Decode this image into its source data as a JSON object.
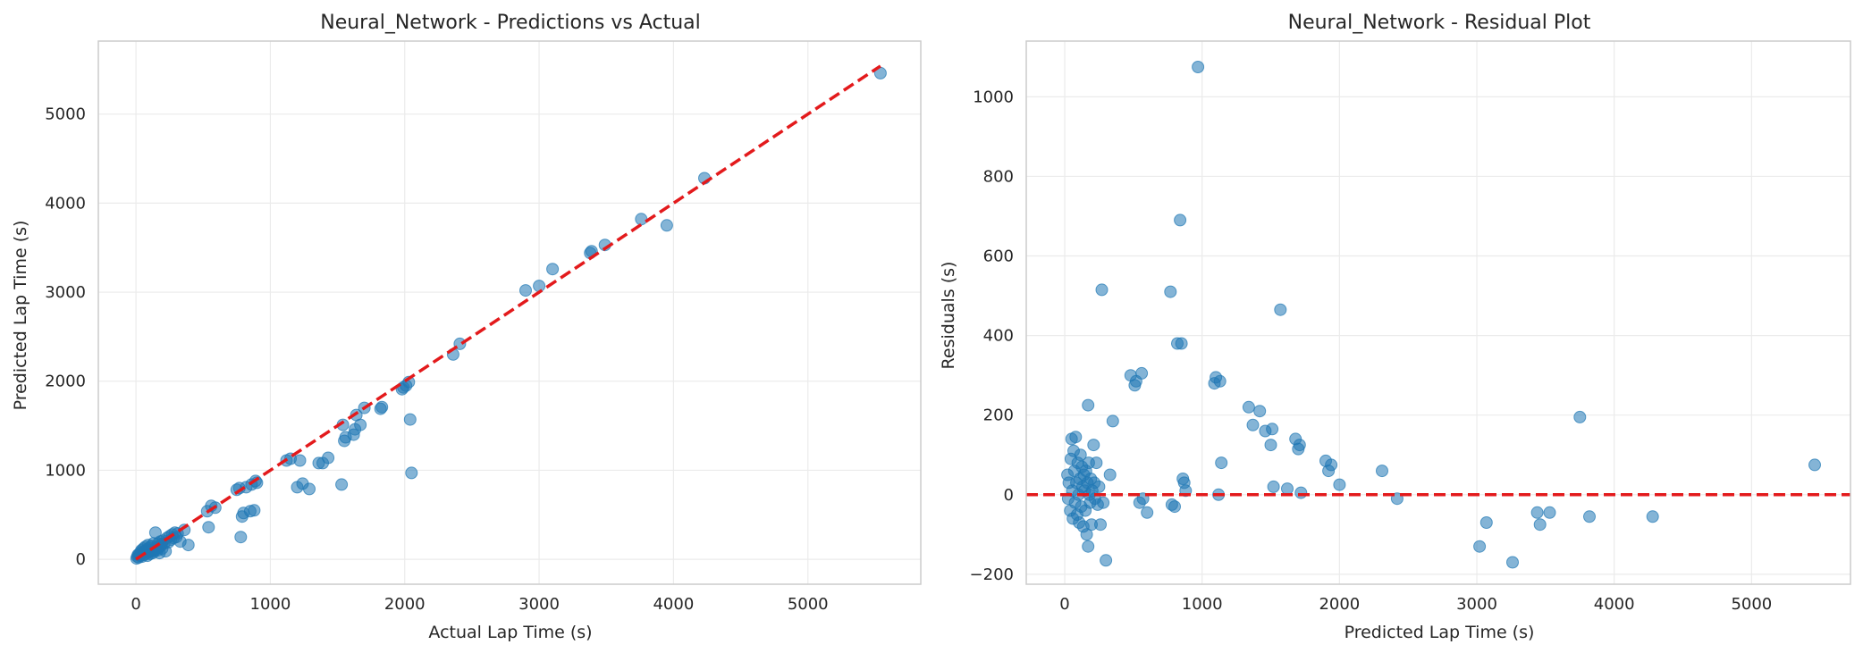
{
  "chart_data": [
    {
      "type": "scatter",
      "title": "Neural_Network - Predictions vs Actual",
      "xlabel": "Actual Lap Time (s)",
      "ylabel": "Predicted Lap Time (s)",
      "xlim": [
        -280,
        5840
      ],
      "ylim": [
        -280,
        5820
      ],
      "xticks": [
        0,
        1000,
        2000,
        3000,
        4000,
        5000
      ],
      "yticks": [
        0,
        1000,
        2000,
        3000,
        4000,
        5000
      ],
      "grid": true,
      "colors": {
        "points": "#1f77b4",
        "reference_line": "#e31a1c",
        "grid": "#ebebeb",
        "frame": "#cccccc"
      },
      "reference_line": {
        "style": "dashed",
        "x": [
          0,
          5540
        ],
        "y": [
          0,
          5540
        ]
      },
      "series": [
        {
          "points": [
            [
              5,
              10
            ],
            [
              10,
              30
            ],
            [
              15,
              50
            ],
            [
              20,
              20
            ],
            [
              25,
              60
            ],
            [
              30,
              40
            ],
            [
              35,
              80
            ],
            [
              40,
              100
            ],
            [
              45,
              30
            ],
            [
              50,
              70
            ],
            [
              55,
              120
            ],
            [
              60,
              50
            ],
            [
              65,
              90
            ],
            [
              70,
              140
            ],
            [
              75,
              60
            ],
            [
              80,
              110
            ],
            [
              85,
              40
            ],
            [
              90,
              160
            ],
            [
              95,
              80
            ],
            [
              100,
              130
            ],
            [
              105,
              60
            ],
            [
              110,
              100
            ],
            [
              115,
              150
            ],
            [
              120,
              90
            ],
            [
              125,
              70
            ],
            [
              130,
              180
            ],
            [
              135,
              110
            ],
            [
              140,
              95
            ],
            [
              145,
              300
            ],
            [
              150,
              120
            ],
            [
              155,
              140
            ],
            [
              160,
              100
            ],
            [
              165,
              180
            ],
            [
              170,
              130
            ],
            [
              175,
              70
            ],
            [
              180,
              200
            ],
            [
              185,
              150
            ],
            [
              190,
              170
            ],
            [
              195,
              120
            ],
            [
              200,
              210
            ],
            [
              210,
              180
            ],
            [
              220,
              90
            ],
            [
              230,
              240
            ],
            [
              240,
              190
            ],
            [
              250,
              260
            ],
            [
              260,
              220
            ],
            [
              270,
              280
            ],
            [
              280,
              240
            ],
            [
              290,
              300
            ],
            [
              300,
              250
            ],
            [
              310,
              290
            ],
            [
              330,
              200
            ],
            [
              360,
              330
            ],
            [
              390,
              160
            ],
            [
              530,
              540
            ],
            [
              540,
              360
            ],
            [
              560,
              600
            ],
            [
              590,
              580
            ],
            [
              750,
              780
            ],
            [
              770,
              800
            ],
            [
              780,
              250
            ],
            [
              790,
              480
            ],
            [
              800,
              520
            ],
            [
              820,
              810
            ],
            [
              850,
              540
            ],
            [
              860,
              840
            ],
            [
              880,
              550
            ],
            [
              890,
              880
            ],
            [
              900,
              860
            ],
            [
              1120,
              1110
            ],
            [
              1150,
              1130
            ],
            [
              1200,
              810
            ],
            [
              1220,
              1110
            ],
            [
              1240,
              850
            ],
            [
              1290,
              790
            ],
            [
              1360,
              1080
            ],
            [
              1390,
              1080
            ],
            [
              1430,
              1140
            ],
            [
              1530,
              840
            ],
            [
              1540,
              1510
            ],
            [
              1550,
              1330
            ],
            [
              1560,
              1370
            ],
            [
              1620,
              1400
            ],
            [
              1630,
              1460
            ],
            [
              1640,
              1620
            ],
            [
              1670,
              1510
            ],
            [
              1700,
              1700
            ],
            [
              1820,
              1690
            ],
            [
              1830,
              1710
            ],
            [
              1980,
              1910
            ],
            [
              1990,
              1930
            ],
            [
              2010,
              1950
            ],
            [
              2030,
              1990
            ],
            [
              2040,
              1570
            ],
            [
              2050,
              970
            ],
            [
              2360,
              2300
            ],
            [
              2410,
              2420
            ],
            [
              2900,
              3020
            ],
            [
              3000,
              3070
            ],
            [
              3100,
              3260
            ],
            [
              3380,
              3440
            ],
            [
              3390,
              3460
            ],
            [
              3490,
              3530
            ],
            [
              3760,
              3820
            ],
            [
              3950,
              3750
            ],
            [
              4230,
              4280
            ],
            [
              5540,
              5460
            ]
          ]
        }
      ]
    },
    {
      "type": "scatter",
      "title": "Neural_Network - Residual Plot",
      "xlabel": "Predicted Lap Time (s)",
      "ylabel": "Residuals (s)",
      "xlim": [
        -280,
        5720
      ],
      "ylim": [
        -225,
        1140
      ],
      "xticks": [
        0,
        1000,
        2000,
        3000,
        4000,
        5000
      ],
      "yticks": [
        -200,
        0,
        200,
        400,
        600,
        800,
        1000
      ],
      "grid": true,
      "colors": {
        "points": "#1f77b4",
        "reference_line": "#e31a1c",
        "grid": "#ebebeb",
        "frame": "#cccccc"
      },
      "reference_line": {
        "style": "dashed",
        "y": 0
      },
      "series": [
        {
          "points": [
            [
              20,
              50
            ],
            [
              25,
              -10
            ],
            [
              30,
              30
            ],
            [
              40,
              -40
            ],
            [
              45,
              90
            ],
            [
              50,
              140
            ],
            [
              55,
              10
            ],
            [
              60,
              -60
            ],
            [
              65,
              110
            ],
            [
              70,
              60
            ],
            [
              75,
              -20
            ],
            [
              80,
              145
            ],
            [
              85,
              30
            ],
            [
              90,
              -50
            ],
            [
              95,
              80
            ],
            [
              100,
              0
            ],
            [
              105,
              -70
            ],
            [
              110,
              40
            ],
            [
              115,
              100
            ],
            [
              120,
              -30
            ],
            [
              125,
              70
            ],
            [
              130,
              20
            ],
            [
              135,
              -80
            ],
            [
              140,
              50
            ],
            [
              145,
              10
            ],
            [
              150,
              -40
            ],
            [
              155,
              60
            ],
            [
              160,
              -100
            ],
            [
              165,
              30
            ],
            [
              170,
              -130
            ],
            [
              175,
              80
            ],
            [
              180,
              0
            ],
            [
              185,
              -20
            ],
            [
              190,
              40
            ],
            [
              195,
              -75
            ],
            [
              200,
              10
            ],
            [
              210,
              125
            ],
            [
              215,
              30
            ],
            [
              220,
              -10
            ],
            [
              230,
              80
            ],
            [
              240,
              -25
            ],
            [
              250,
              20
            ],
            [
              260,
              -75
            ],
            [
              270,
              515
            ],
            [
              280,
              -20
            ],
            [
              300,
              -165
            ],
            [
              330,
              50
            ],
            [
              350,
              185
            ],
            [
              170,
              225
            ],
            [
              480,
              300
            ],
            [
              510,
              275
            ],
            [
              520,
              285
            ],
            [
              545,
              -20
            ],
            [
              560,
              305
            ],
            [
              570,
              -10
            ],
            [
              600,
              -45
            ],
            [
              770,
              510
            ],
            [
              780,
              -25
            ],
            [
              800,
              -30
            ],
            [
              820,
              380
            ],
            [
              840,
              690
            ],
            [
              850,
              380
            ],
            [
              860,
              40
            ],
            [
              870,
              30
            ],
            [
              880,
              10
            ],
            [
              970,
              1075
            ],
            [
              1090,
              280
            ],
            [
              1100,
              295
            ],
            [
              1120,
              0
            ],
            [
              1130,
              285
            ],
            [
              1140,
              80
            ],
            [
              1340,
              220
            ],
            [
              1370,
              175
            ],
            [
              1420,
              210
            ],
            [
              1460,
              160
            ],
            [
              1500,
              125
            ],
            [
              1510,
              165
            ],
            [
              1520,
              20
            ],
            [
              1570,
              465
            ],
            [
              1620,
              15
            ],
            [
              1680,
              140
            ],
            [
              1700,
              115
            ],
            [
              1710,
              125
            ],
            [
              1720,
              5
            ],
            [
              1900,
              85
            ],
            [
              1920,
              60
            ],
            [
              1940,
              75
            ],
            [
              2000,
              25
            ],
            [
              2310,
              60
            ],
            [
              2420,
              -10
            ],
            [
              3020,
              -130
            ],
            [
              3070,
              -70
            ],
            [
              3260,
              -170
            ],
            [
              3440,
              -45
            ],
            [
              3460,
              -75
            ],
            [
              3530,
              -45
            ],
            [
              3750,
              195
            ],
            [
              3820,
              -55
            ],
            [
              4280,
              -55
            ],
            [
              5460,
              75
            ]
          ]
        }
      ]
    }
  ]
}
